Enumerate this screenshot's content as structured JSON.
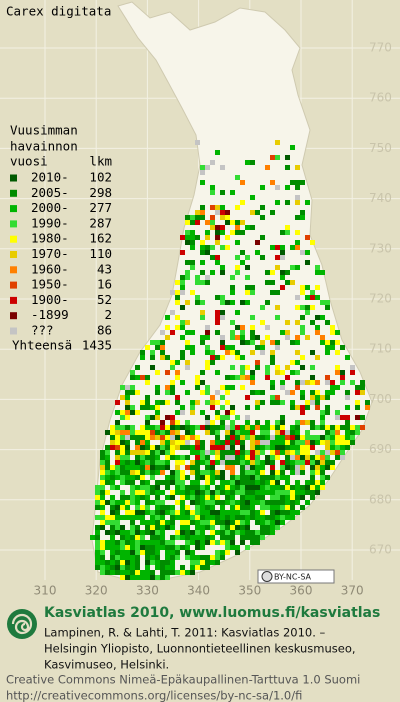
{
  "title": "Carex digitata",
  "legend": {
    "heading": [
      "Vuusimman",
      "havainnon"
    ],
    "year_header": "vuosi",
    "count_header": "lkm",
    "rows": [
      {
        "label": "2010-",
        "count": 102,
        "color": "#005a00"
      },
      {
        "label": "2005-",
        "count": 298,
        "color": "#008c00"
      },
      {
        "label": "2000-",
        "count": 277,
        "color": "#00b400"
      },
      {
        "label": "1990-",
        "count": 287,
        "color": "#33dc33"
      },
      {
        "label": "1980-",
        "count": 162,
        "color": "#ffff00"
      },
      {
        "label": "1970-",
        "count": 110,
        "color": "#e8cc00"
      },
      {
        "label": "1960-",
        "count": 43,
        "color": "#ff8000"
      },
      {
        "label": "1950-",
        "count": 16,
        "color": "#e04000"
      },
      {
        "label": "1900-",
        "count": 52,
        "color": "#cc0000"
      },
      {
        "label": "-1899",
        "count": 2,
        "color": "#7a0000"
      },
      {
        "label": "???",
        "count": 86,
        "color": "#c4c4c4"
      }
    ],
    "total_label": "Yhteensä",
    "total": 1435
  },
  "grid": {
    "y_labels": [
      "770",
      "760",
      "750",
      "740",
      "730",
      "720",
      "710",
      "700",
      "690",
      "680",
      "670"
    ],
    "x_labels": [
      "310",
      "320",
      "330",
      "340",
      "350",
      "360",
      "370"
    ]
  },
  "license_badge": "BY-NC-SA",
  "credits": {
    "headline": "Kasviatlas 2010, www.luomus.fi/kasviatlas",
    "citation": [
      "Lampinen, R. & Lahti, T. 2011: Kasviatlas 2010. –",
      "Helsingin Yliopisto, Luonnontieteellinen keskusmuseo,",
      "Kasvimuseo, Helsinki."
    ],
    "license": [
      "Creative Commons Nimeä-Epäkaupallinen-Tarttuva 1.0 Suomi",
      "http://creativecommons.org/licenses/by-nc-sa/1.0/fi"
    ]
  }
}
